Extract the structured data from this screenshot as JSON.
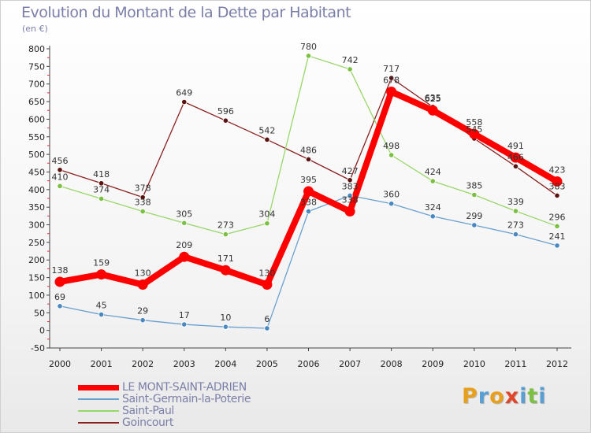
{
  "title": "Evolution du Montant de la Dette par Habitant",
  "unit": "(en €)",
  "logo": {
    "text": "Proxiti",
    "letters": [
      {
        "ch": "P",
        "color": "#e8a01c"
      },
      {
        "ch": "r",
        "color": "#5a9fd4"
      },
      {
        "ch": "o",
        "color": "#e8a01c"
      },
      {
        "ch": "x",
        "color": "#e0462a"
      },
      {
        "ch": "i",
        "color": "#5a9fd4"
      },
      {
        "ch": "t",
        "color": "#7cc043"
      },
      {
        "ch": "i",
        "color": "#5a9fd4"
      }
    ]
  },
  "chart_data": {
    "type": "line",
    "title": "Evolution du Montant de la Dette par Habitant",
    "ylabel": "(en €)",
    "xlabel": "",
    "ylim": [
      -50,
      800
    ],
    "ytick_step": 50,
    "grid": false,
    "legend_position": "bottom-left",
    "categories": [
      "2000",
      "2001",
      "2002",
      "2003",
      "2004",
      "2005",
      "2006",
      "2007",
      "2008",
      "2009",
      "2010",
      "2011",
      "2012"
    ],
    "series": [
      {
        "name": "Goincourt",
        "color": "#8a2020",
        "marker": "#5a1212",
        "values": [
          456,
          418,
          378,
          649,
          596,
          542,
          486,
          427,
          717,
          635,
          545,
          466,
          383
        ]
      },
      {
        "name": "Saint-Paul",
        "color": "#99d66a",
        "marker": "#7cc043",
        "values": [
          410,
          374,
          338,
          305,
          273,
          304,
          780,
          742,
          498,
          424,
          385,
          339,
          296
        ]
      },
      {
        "name": "Saint-Germain-la-Poterie",
        "color": "#6aa0cf",
        "marker": "#4a88c2",
        "values": [
          69,
          45,
          29,
          17,
          10,
          6,
          338,
          383,
          360,
          324,
          299,
          273,
          241
        ]
      },
      {
        "name": "LE MONT-SAINT-ADRIEN",
        "color": "#ff0000",
        "marker": "#ff0000",
        "bold": true,
        "values": [
          138,
          159,
          130,
          209,
          171,
          130,
          395,
          338,
          678,
          625,
          558,
          491,
          423
        ]
      }
    ]
  },
  "legend": [
    {
      "label": "LE MONT-SAINT-ADRIEN",
      "color": "#ff0000",
      "bold": true
    },
    {
      "label": "Saint-Germain-la-Poterie",
      "color": "#6aa0cf",
      "bold": false
    },
    {
      "label": "Saint-Paul",
      "color": "#99d66a",
      "bold": false
    },
    {
      "label": "Goincourt",
      "color": "#8a2020",
      "bold": false
    }
  ]
}
